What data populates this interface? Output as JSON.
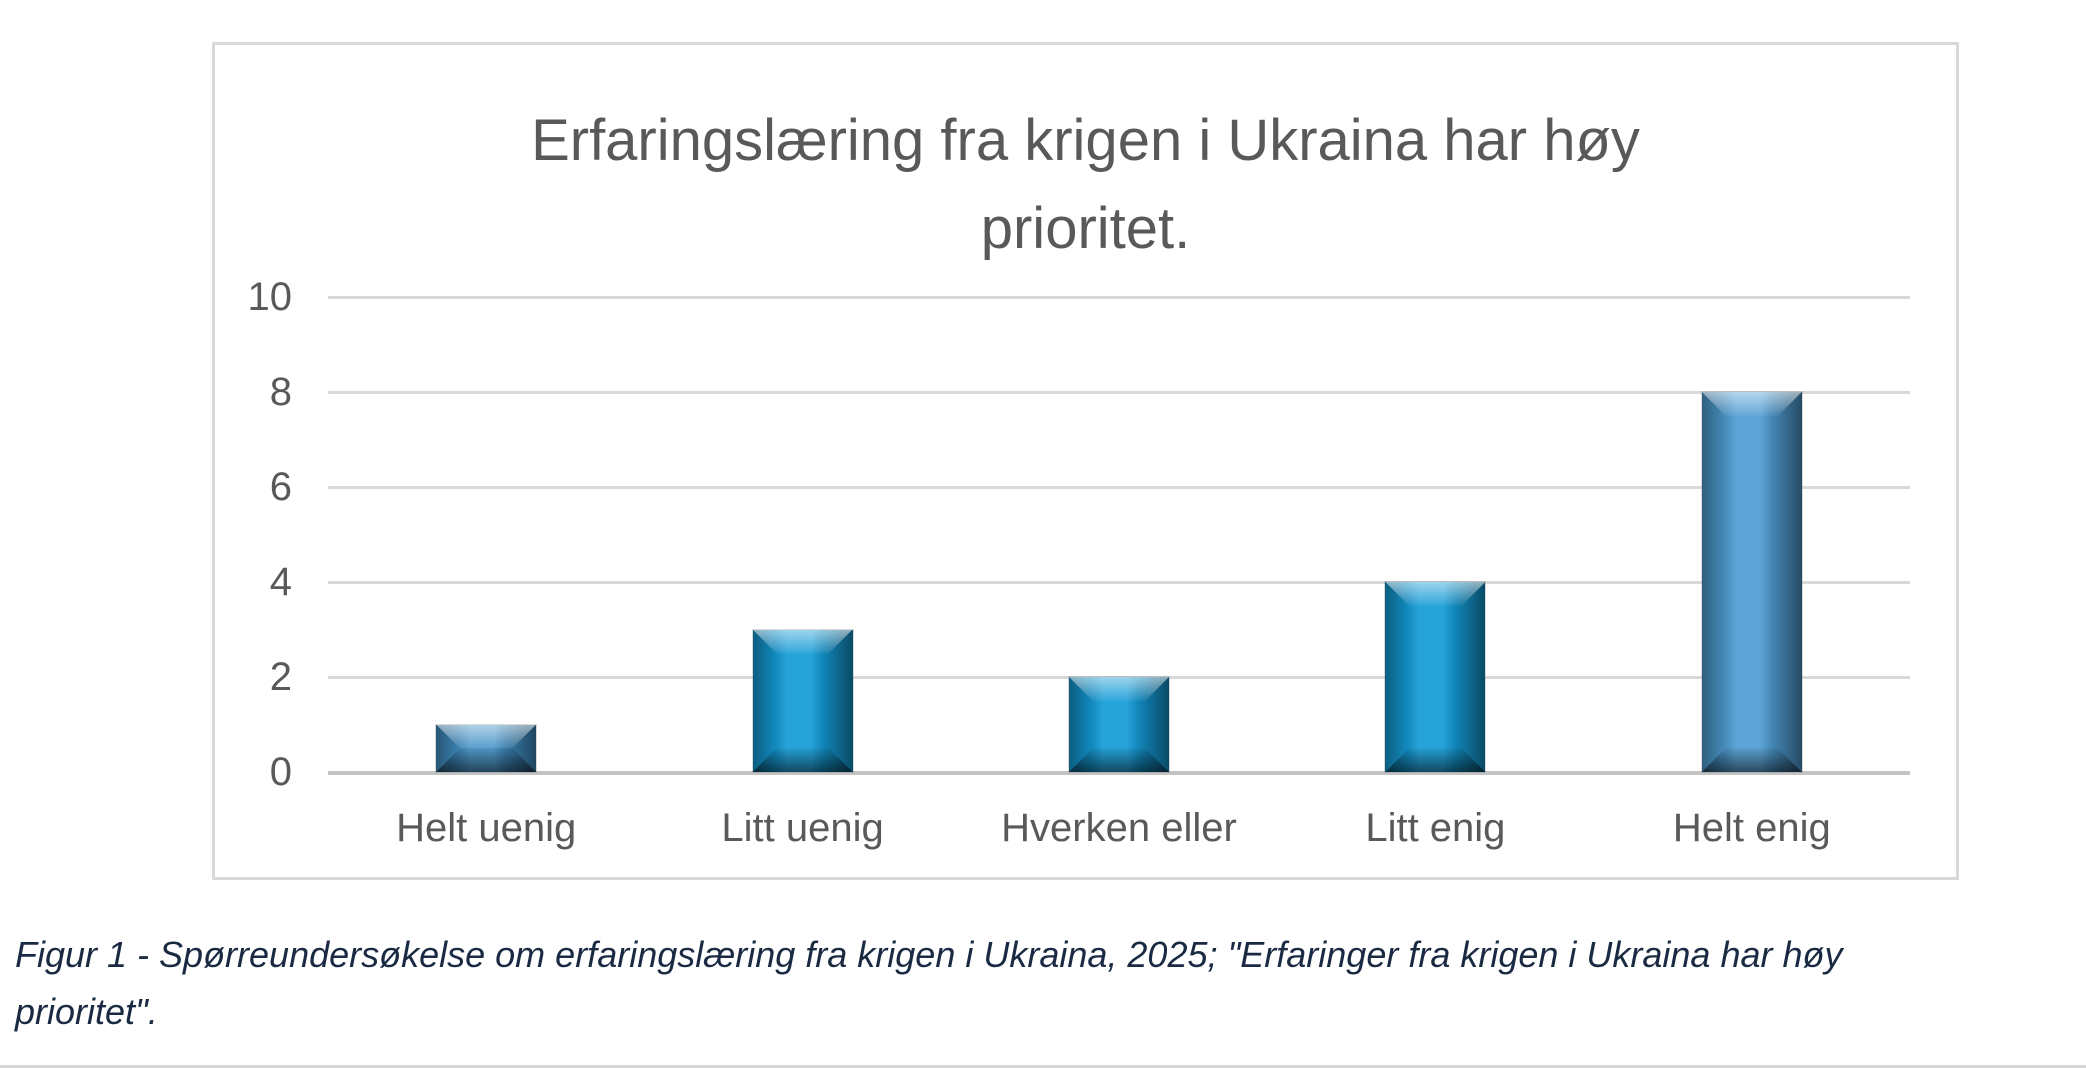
{
  "figure": {
    "title_line1": "Erfaringslæring fra krigen i Ukraina har høy",
    "title_line2": "prioritet."
  },
  "caption": {
    "line1": "Figur 1 - Spørreundersøkelse om erfaringslæring fra krigen i Ukraina, 2025; \"Erfaringer fra krigen i Ukraina har høy",
    "line2": "prioritet\"."
  },
  "chart_data": {
    "type": "bar",
    "title": "Erfaringslæring fra krigen i Ukraina har høy prioritet.",
    "categories": [
      "Helt uenig",
      "Litt uenig",
      "Hverken eller",
      "Litt enig",
      "Helt enig"
    ],
    "values": [
      1,
      3,
      2,
      4,
      8
    ],
    "xlabel": "",
    "ylabel": "",
    "ylim": [
      0,
      10
    ],
    "yticks": [
      0,
      2,
      4,
      6,
      8,
      10
    ],
    "grid": true,
    "legend_position": "none",
    "bar_style": "3d-bevel",
    "bar_face_colors": [
      "#4190c5",
      "#149bd6",
      "#149bd6",
      "#149bd6",
      "#4f9dd2"
    ],
    "colors": {
      "gridline": "#d9d9d9",
      "baseline": "#c3c3c3",
      "axis_text": "#595959",
      "title_text": "#595959",
      "frame_border": "#d9d9d9",
      "caption_text": "#1a2a42"
    }
  }
}
